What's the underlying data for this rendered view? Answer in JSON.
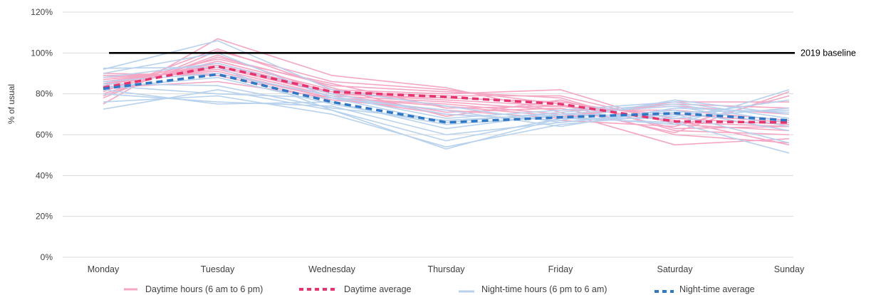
{
  "chart_data": {
    "type": "line",
    "ylabel": "% of usual",
    "ylim": [
      0,
      120
    ],
    "yticks": [
      0,
      20,
      40,
      60,
      80,
      100,
      120
    ],
    "yticklabels": [
      "0%",
      "20%",
      "40%",
      "60%",
      "80%",
      "100%",
      "120%"
    ],
    "grid": true,
    "legend_position": "bottom",
    "categories": [
      "Monday",
      "Tuesday",
      "Wednesday",
      "Thursday",
      "Friday",
      "Saturday",
      "Sunday"
    ],
    "baseline": {
      "value": 100,
      "label": "2019 baseline",
      "color": "#000000"
    },
    "daytime_lines": {
      "legend": "Daytime hours (6 am to 6 pm)",
      "color": "#f4a6c3",
      "series": [
        [
          75,
          107,
          89,
          83,
          71,
          55,
          58
        ],
        [
          78,
          101,
          86,
          82,
          75,
          60,
          56
        ],
        [
          80,
          98,
          84,
          81,
          78,
          62,
          60
        ],
        [
          82,
          96,
          82,
          80,
          82,
          65,
          62
        ],
        [
          84,
          95,
          81,
          79,
          79,
          66,
          64
        ],
        [
          85,
          94,
          80,
          78,
          76,
          68,
          65
        ],
        [
          86,
          93,
          80,
          77,
          74,
          70,
          66
        ],
        [
          87,
          92,
          79,
          76,
          72,
          72,
          67
        ],
        [
          88,
          91,
          78,
          75,
          70,
          74,
          70
        ],
        [
          89,
          90,
          78,
          74,
          69,
          75,
          73
        ],
        [
          90,
          89,
          77,
          72,
          68,
          76,
          76
        ],
        [
          83,
          86,
          78,
          70,
          67,
          64,
          79
        ],
        [
          79,
          99,
          80,
          71,
          73,
          61,
          81
        ],
        [
          81,
          102,
          83,
          69,
          77,
          63,
          64
        ],
        [
          84,
          97,
          85,
          73,
          74,
          67,
          55
        ]
      ]
    },
    "daytime_average": {
      "legend": "Daytime average",
      "color": "#e8336d",
      "values": [
        83,
        93.5,
        81,
        78.5,
        75,
        66.5,
        66
      ]
    },
    "night_lines": {
      "legend": "Night-time hours (6 pm to 6 am)",
      "color": "#b8d2ee",
      "series": [
        [
          72.5,
          82,
          72,
          53,
          68,
          66,
          51
        ],
        [
          76,
          79,
          70,
          54,
          65,
          70,
          56
        ],
        [
          80,
          76,
          74,
          60,
          66,
          72,
          62
        ],
        [
          82,
          75,
          76,
          63,
          70,
          74,
          64
        ],
        [
          84,
          80,
          78,
          66,
          71,
          75,
          66
        ],
        [
          86,
          90,
          79,
          68,
          72,
          76,
          68
        ],
        [
          88,
          95,
          80,
          70,
          67,
          77,
          70
        ],
        [
          90,
          100,
          78,
          72,
          64,
          73,
          71
        ],
        [
          92,
          106,
          82,
          74,
          66,
          71,
          72
        ],
        [
          92.5,
          93,
          72,
          57,
          68,
          68,
          73
        ],
        [
          83,
          88,
          75,
          65,
          69,
          65,
          82
        ],
        [
          85,
          84,
          73,
          67,
          70,
          69,
          77
        ]
      ]
    },
    "night_average": {
      "legend": "Night-time average",
      "color": "#2f78c6",
      "values": [
        82.5,
        89.5,
        76,
        66,
        68.5,
        70.5,
        67
      ]
    }
  }
}
